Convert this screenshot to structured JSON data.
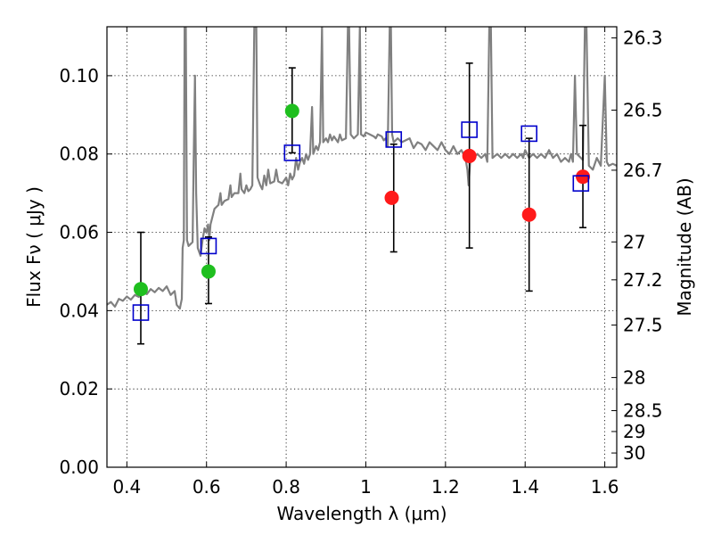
{
  "chart_data": {
    "type": "scatter",
    "xlabel": "Wavelength  λ (μm)",
    "ylabel": "Flux  Fν  ( μJy )",
    "ylabel_right": "Magnitude (AB)",
    "xlim": [
      0.35,
      1.63
    ],
    "ylim": [
      0.0,
      0.1125
    ],
    "grid": true,
    "x_ticks": [
      0.4,
      0.6,
      0.8,
      1.0,
      1.2,
      1.4,
      1.6
    ],
    "x_tick_labels": [
      "0.4",
      "0.6",
      "0.8",
      "1",
      "1.2",
      "1.4",
      "1.6"
    ],
    "y_ticks": [
      0.0,
      0.02,
      0.04,
      0.06,
      0.08,
      0.1
    ],
    "y_tick_labels": [
      "0.00",
      "0.02",
      "0.04",
      "0.06",
      "0.08",
      "0.10"
    ],
    "right_ticks": [
      {
        "label": "26.3",
        "mag": 26.3
      },
      {
        "label": "26.5",
        "mag": 26.5
      },
      {
        "label": "26.7",
        "mag": 26.7
      },
      {
        "label": "27",
        "mag": 27.0
      },
      {
        "label": "27.2",
        "mag": 27.2
      },
      {
        "label": "27.5",
        "mag": 27.5
      },
      {
        "label": "28",
        "mag": 28.0
      },
      {
        "label": "28.5",
        "mag": 28.5
      },
      {
        "label": "29",
        "mag": 29.0
      },
      {
        "label": "30",
        "mag": 30.0
      }
    ],
    "series": [
      {
        "name": "model spectrum",
        "kind": "line",
        "color": "#808080",
        "points": [
          [
            0.35,
            0.0415
          ],
          [
            0.36,
            0.0422
          ],
          [
            0.37,
            0.041
          ],
          [
            0.38,
            0.043
          ],
          [
            0.39,
            0.0425
          ],
          [
            0.4,
            0.0436
          ],
          [
            0.41,
            0.0428
          ],
          [
            0.42,
            0.044
          ],
          [
            0.43,
            0.0435
          ],
          [
            0.44,
            0.0448
          ],
          [
            0.45,
            0.0442
          ],
          [
            0.46,
            0.0455
          ],
          [
            0.47,
            0.0447
          ],
          [
            0.48,
            0.0458
          ],
          [
            0.49,
            0.045
          ],
          [
            0.5,
            0.0462
          ],
          [
            0.51,
            0.044
          ],
          [
            0.52,
            0.045
          ],
          [
            0.525,
            0.0415
          ],
          [
            0.533,
            0.0405
          ],
          [
            0.538,
            0.043
          ],
          [
            0.54,
            0.056
          ],
          [
            0.543,
            0.058
          ],
          [
            0.545,
            0.1125
          ],
          [
            0.548,
            0.1125
          ],
          [
            0.551,
            0.058
          ],
          [
            0.555,
            0.0565
          ],
          [
            0.56,
            0.057
          ],
          [
            0.565,
            0.0575
          ],
          [
            0.568,
            0.08
          ],
          [
            0.571,
            0.1
          ],
          [
            0.574,
            0.07
          ],
          [
            0.578,
            0.056
          ],
          [
            0.585,
            0.054
          ],
          [
            0.59,
            0.058
          ],
          [
            0.595,
            0.061
          ],
          [
            0.6,
            0.06
          ],
          [
            0.604,
            0.062
          ],
          [
            0.607,
            0.058
          ],
          [
            0.61,
            0.062
          ],
          [
            0.615,
            0.064
          ],
          [
            0.62,
            0.066
          ],
          [
            0.625,
            0.0665
          ],
          [
            0.63,
            0.067
          ],
          [
            0.635,
            0.07
          ],
          [
            0.638,
            0.067
          ],
          [
            0.645,
            0.068
          ],
          [
            0.655,
            0.0685
          ],
          [
            0.66,
            0.072
          ],
          [
            0.663,
            0.069
          ],
          [
            0.67,
            0.07
          ],
          [
            0.68,
            0.07
          ],
          [
            0.685,
            0.075
          ],
          [
            0.688,
            0.071
          ],
          [
            0.695,
            0.07
          ],
          [
            0.7,
            0.072
          ],
          [
            0.705,
            0.0705
          ],
          [
            0.71,
            0.071
          ],
          [
            0.715,
            0.072
          ],
          [
            0.72,
            0.1125
          ],
          [
            0.725,
            0.1125
          ],
          [
            0.728,
            0.074
          ],
          [
            0.735,
            0.072
          ],
          [
            0.74,
            0.071
          ],
          [
            0.745,
            0.0745
          ],
          [
            0.75,
            0.072
          ],
          [
            0.755,
            0.076
          ],
          [
            0.76,
            0.0725
          ],
          [
            0.77,
            0.073
          ],
          [
            0.775,
            0.076
          ],
          [
            0.78,
            0.073
          ],
          [
            0.79,
            0.0725
          ],
          [
            0.8,
            0.074
          ],
          [
            0.805,
            0.072
          ],
          [
            0.81,
            0.075
          ],
          [
            0.815,
            0.0735
          ],
          [
            0.82,
            0.0745
          ],
          [
            0.825,
            0.079
          ],
          [
            0.83,
            0.076
          ],
          [
            0.835,
            0.078
          ],
          [
            0.84,
            0.079
          ],
          [
            0.845,
            0.0775
          ],
          [
            0.85,
            0.08
          ],
          [
            0.855,
            0.0785
          ],
          [
            0.86,
            0.08
          ],
          [
            0.865,
            0.092
          ],
          [
            0.868,
            0.08
          ],
          [
            0.875,
            0.082
          ],
          [
            0.88,
            0.081
          ],
          [
            0.885,
            0.083
          ],
          [
            0.89,
            0.1125
          ],
          [
            0.893,
            0.083
          ],
          [
            0.9,
            0.084
          ],
          [
            0.905,
            0.083
          ],
          [
            0.91,
            0.085
          ],
          [
            0.915,
            0.0835
          ],
          [
            0.92,
            0.0845
          ],
          [
            0.93,
            0.083
          ],
          [
            0.935,
            0.085
          ],
          [
            0.94,
            0.0835
          ],
          [
            0.95,
            0.084
          ],
          [
            0.955,
            0.1125
          ],
          [
            0.958,
            0.1125
          ],
          [
            0.962,
            0.085
          ],
          [
            0.97,
            0.084
          ],
          [
            0.98,
            0.085
          ],
          [
            0.985,
            0.1125
          ],
          [
            0.988,
            0.085
          ],
          [
            0.995,
            0.0845
          ],
          [
            1.0,
            0.0855
          ],
          [
            1.01,
            0.085
          ],
          [
            1.02,
            0.0845
          ],
          [
            1.025,
            0.084
          ],
          [
            1.03,
            0.085
          ],
          [
            1.04,
            0.0845
          ],
          [
            1.045,
            0.0835
          ],
          [
            1.05,
            0.084
          ],
          [
            1.055,
            0.082
          ],
          [
            1.06,
            0.1125
          ],
          [
            1.063,
            0.1125
          ],
          [
            1.066,
            0.085
          ],
          [
            1.07,
            0.083
          ],
          [
            1.08,
            0.084
          ],
          [
            1.09,
            0.083
          ],
          [
            1.1,
            0.0835
          ],
          [
            1.11,
            0.084
          ],
          [
            1.12,
            0.0815
          ],
          [
            1.13,
            0.083
          ],
          [
            1.14,
            0.0825
          ],
          [
            1.15,
            0.081
          ],
          [
            1.16,
            0.083
          ],
          [
            1.17,
            0.082
          ],
          [
            1.18,
            0.081
          ],
          [
            1.19,
            0.083
          ],
          [
            1.2,
            0.081
          ],
          [
            1.21,
            0.08
          ],
          [
            1.22,
            0.082
          ],
          [
            1.23,
            0.08
          ],
          [
            1.24,
            0.081
          ],
          [
            1.25,
            0.079
          ],
          [
            1.255,
            0.076
          ],
          [
            1.258,
            0.072
          ],
          [
            1.262,
            0.078
          ],
          [
            1.27,
            0.079
          ],
          [
            1.28,
            0.08
          ],
          [
            1.29,
            0.079
          ],
          [
            1.3,
            0.08
          ],
          [
            1.305,
            0.078
          ],
          [
            1.31,
            0.1125
          ],
          [
            1.314,
            0.1125
          ],
          [
            1.318,
            0.079
          ],
          [
            1.33,
            0.08
          ],
          [
            1.34,
            0.079
          ],
          [
            1.35,
            0.08
          ],
          [
            1.36,
            0.079
          ],
          [
            1.37,
            0.08
          ],
          [
            1.38,
            0.079
          ],
          [
            1.39,
            0.08
          ],
          [
            1.395,
            0.079
          ],
          [
            1.4,
            0.081
          ],
          [
            1.405,
            0.08
          ],
          [
            1.41,
            0.079
          ],
          [
            1.42,
            0.08
          ],
          [
            1.43,
            0.079
          ],
          [
            1.44,
            0.08
          ],
          [
            1.45,
            0.079
          ],
          [
            1.46,
            0.081
          ],
          [
            1.47,
            0.079
          ],
          [
            1.48,
            0.08
          ],
          [
            1.49,
            0.078
          ],
          [
            1.5,
            0.079
          ],
          [
            1.51,
            0.078
          ],
          [
            1.515,
            0.08
          ],
          [
            1.52,
            0.078
          ],
          [
            1.525,
            0.1
          ],
          [
            1.53,
            0.08
          ],
          [
            1.54,
            0.079
          ],
          [
            1.545,
            0.0785
          ],
          [
            1.55,
            0.1125
          ],
          [
            1.554,
            0.1125
          ],
          [
            1.56,
            0.077
          ],
          [
            1.57,
            0.076
          ],
          [
            1.58,
            0.079
          ],
          [
            1.59,
            0.077
          ],
          [
            1.6,
            0.1
          ],
          [
            1.605,
            0.078
          ],
          [
            1.61,
            0.077
          ],
          [
            1.62,
            0.0775
          ],
          [
            1.63,
            0.077
          ]
        ]
      },
      {
        "name": "photometry green",
        "kind": "circle",
        "color": "#1fbf1f",
        "points": [
          [
            0.435,
            0.0455
          ],
          [
            0.605,
            0.05
          ],
          [
            0.815,
            0.091
          ]
        ]
      },
      {
        "name": "photometry red",
        "kind": "circle",
        "color": "#ff1a1a",
        "points": [
          [
            1.065,
            0.0688
          ],
          [
            1.26,
            0.0795
          ],
          [
            1.41,
            0.0645
          ],
          [
            1.545,
            0.0742
          ]
        ]
      },
      {
        "name": "model photometry",
        "kind": "square",
        "color": "#0000cc",
        "points": [
          [
            0.435,
            0.0395
          ],
          [
            0.605,
            0.0565
          ],
          [
            0.815,
            0.0803
          ],
          [
            1.07,
            0.0837
          ],
          [
            1.26,
            0.0862
          ],
          [
            1.41,
            0.0852
          ],
          [
            1.54,
            0.0725
          ]
        ]
      },
      {
        "name": "error bars",
        "kind": "errorbar",
        "color": "#000000",
        "bars": [
          {
            "x": 0.435,
            "low": 0.0315,
            "high": 0.06
          },
          {
            "x": 0.605,
            "low": 0.0418,
            "high": 0.0588
          },
          {
            "x": 0.815,
            "low": 0.0803,
            "high": 0.102
          },
          {
            "x": 1.07,
            "low": 0.055,
            "high": 0.0825
          },
          {
            "x": 1.26,
            "low": 0.056,
            "high": 0.1032
          },
          {
            "x": 1.41,
            "low": 0.045,
            "high": 0.084
          },
          {
            "x": 1.545,
            "low": 0.0612,
            "high": 0.0873
          }
        ]
      }
    ]
  }
}
